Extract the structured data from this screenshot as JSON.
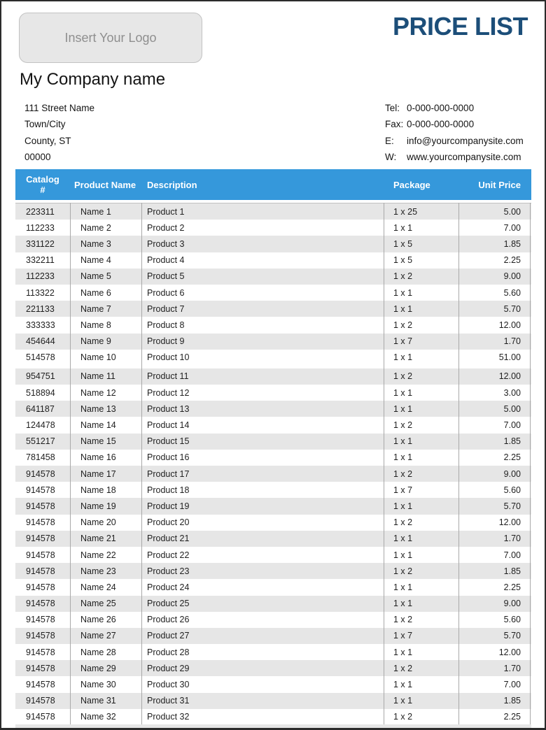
{
  "header": {
    "logo_placeholder": "Insert Your Logo",
    "title": "PRICE LIST",
    "company_name": "My Company name",
    "address_lines": [
      "111 Street Name",
      "Town/City",
      "County, ST",
      "00000"
    ],
    "contacts": [
      {
        "label": "Tel:",
        "value": "0-000-000-0000"
      },
      {
        "label": "Fax:",
        "value": "0-000-000-0000"
      },
      {
        "label": "E:",
        "value": "info@yourcompanysite.com"
      },
      {
        "label": "W:",
        "value": "www.yourcompanysite.com"
      }
    ]
  },
  "table": {
    "columns": [
      {
        "key": "catalog",
        "label": "Catalog\n#"
      },
      {
        "key": "name",
        "label": "Product Name"
      },
      {
        "key": "description",
        "label": "Description"
      },
      {
        "key": "package",
        "label": "Package"
      },
      {
        "key": "price",
        "label": "Unit Price"
      }
    ],
    "rows": [
      {
        "catalog": "223311",
        "name": "Name 1",
        "description": "Product 1",
        "package": "1 x 25",
        "price": "5.00"
      },
      {
        "catalog": "112233",
        "name": "Name 2",
        "description": "Product 2",
        "package": "1 x 1",
        "price": "7.00"
      },
      {
        "catalog": "331122",
        "name": "Name 3",
        "description": "Product 3",
        "package": "1 x 5",
        "price": "1.85"
      },
      {
        "catalog": "332211",
        "name": "Name 4",
        "description": "Product 4",
        "package": "1 x 5",
        "price": "2.25"
      },
      {
        "catalog": "112233",
        "name": "Name 5",
        "description": "Product 5",
        "package": "1 x 2",
        "price": "9.00"
      },
      {
        "catalog": "113322",
        "name": "Name 6",
        "description": "Product 6",
        "package": "1 x 1",
        "price": "5.60"
      },
      {
        "catalog": "221133",
        "name": "Name 7",
        "description": "Product 7",
        "package": "1 x 1",
        "price": "5.70"
      },
      {
        "catalog": "333333",
        "name": "Name 8",
        "description": "Product 8",
        "package": "1 x 2",
        "price": "12.00"
      },
      {
        "catalog": "454644",
        "name": "Name 9",
        "description": "Product 9",
        "package": "1 x 7",
        "price": "1.70"
      },
      {
        "catalog": "514578",
        "name": "Name 10",
        "description": "Product 10",
        "package": "1 x 1",
        "price": "51.00"
      },
      {
        "catalog": "954751",
        "name": "Name 11",
        "description": "Product 11",
        "package": "1 x 2",
        "price": "12.00"
      },
      {
        "catalog": "518894",
        "name": "Name 12",
        "description": "Product 12",
        "package": "1 x 1",
        "price": "3.00"
      },
      {
        "catalog": "641187",
        "name": "Name 13",
        "description": "Product 13",
        "package": "1 x 1",
        "price": "5.00"
      },
      {
        "catalog": "124478",
        "name": "Name 14",
        "description": "Product 14",
        "package": "1 x 2",
        "price": "7.00"
      },
      {
        "catalog": "551217",
        "name": "Name 15",
        "description": "Product 15",
        "package": "1 x 1",
        "price": "1.85"
      },
      {
        "catalog": "781458",
        "name": "Name 16",
        "description": "Product 16",
        "package": "1 x 1",
        "price": "2.25"
      },
      {
        "catalog": "914578",
        "name": "Name 17",
        "description": "Product 17",
        "package": "1 x 2",
        "price": "9.00"
      },
      {
        "catalog": "914578",
        "name": "Name 18",
        "description": "Product 18",
        "package": "1 x 7",
        "price": "5.60"
      },
      {
        "catalog": "914578",
        "name": "Name 19",
        "description": "Product 19",
        "package": "1 x 1",
        "price": "5.70"
      },
      {
        "catalog": "914578",
        "name": "Name 20",
        "description": "Product 20",
        "package": "1 x 2",
        "price": "12.00"
      },
      {
        "catalog": "914578",
        "name": "Name 21",
        "description": "Product 21",
        "package": "1 x 1",
        "price": "1.70"
      },
      {
        "catalog": "914578",
        "name": "Name 22",
        "description": "Product 22",
        "package": "1 x 1",
        "price": "7.00"
      },
      {
        "catalog": "914578",
        "name": "Name 23",
        "description": "Product 23",
        "package": "1 x 2",
        "price": "1.85"
      },
      {
        "catalog": "914578",
        "name": "Name 24",
        "description": "Product 24",
        "package": "1 x 1",
        "price": "2.25"
      },
      {
        "catalog": "914578",
        "name": "Name 25",
        "description": "Product 25",
        "package": "1 x 1",
        "price": "9.00"
      },
      {
        "catalog": "914578",
        "name": "Name 26",
        "description": "Product 26",
        "package": "1 x 2",
        "price": "5.60"
      },
      {
        "catalog": "914578",
        "name": "Name 27",
        "description": "Product 27",
        "package": "1 x 7",
        "price": "5.70"
      },
      {
        "catalog": "914578",
        "name": "Name 28",
        "description": "Product 28",
        "package": "1 x 1",
        "price": "12.00"
      },
      {
        "catalog": "914578",
        "name": "Name 29",
        "description": "Product 29",
        "package": "1 x 2",
        "price": "1.70"
      },
      {
        "catalog": "914578",
        "name": "Name 30",
        "description": "Product 30",
        "package": "1 x 1",
        "price": "7.00"
      },
      {
        "catalog": "914578",
        "name": "Name 31",
        "description": "Product 31",
        "package": "1 x 1",
        "price": "1.85"
      },
      {
        "catalog": "914578",
        "name": "Name 32",
        "description": "Product 32",
        "package": "1 x 2",
        "price": "2.25"
      }
    ]
  },
  "colors": {
    "header_accent_blue": "#3598db",
    "title_navy": "#1c4e79",
    "row_stripe_gray": "#e6e6e6",
    "logo_box_bg": "#e7e7e7",
    "logo_text_gray": "#8f8f8f",
    "page_border": "#2b2b2b"
  }
}
